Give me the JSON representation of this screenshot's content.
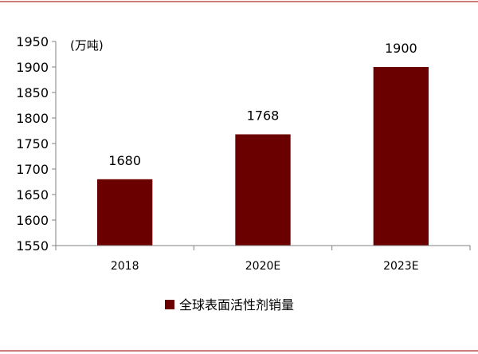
{
  "chart_data": {
    "type": "bar",
    "title": "",
    "xlabel": "",
    "ylabel": "",
    "unit_label": "(万吨)",
    "categories": [
      "2018",
      "2020E",
      "2023E"
    ],
    "series": [
      {
        "name": "全球表面活性剂销量",
        "values": [
          1680,
          1768,
          1900
        ],
        "color": "#6b0000"
      }
    ],
    "data_labels": [
      "1680",
      "1768",
      "1900"
    ],
    "yticks": [
      1550,
      1600,
      1650,
      1700,
      1750,
      1800,
      1850,
      1900,
      1950
    ],
    "ytick_labels": [
      "1550",
      "1600",
      "1650",
      "1700",
      "1750",
      "1800",
      "1850",
      "1900",
      "1950"
    ],
    "ylim": [
      1550,
      1950
    ],
    "grid": false,
    "legend_position": "bottom"
  },
  "colors": {
    "bar": "#6b0000",
    "frame_line": "#c0504d",
    "axis": "#808080"
  }
}
